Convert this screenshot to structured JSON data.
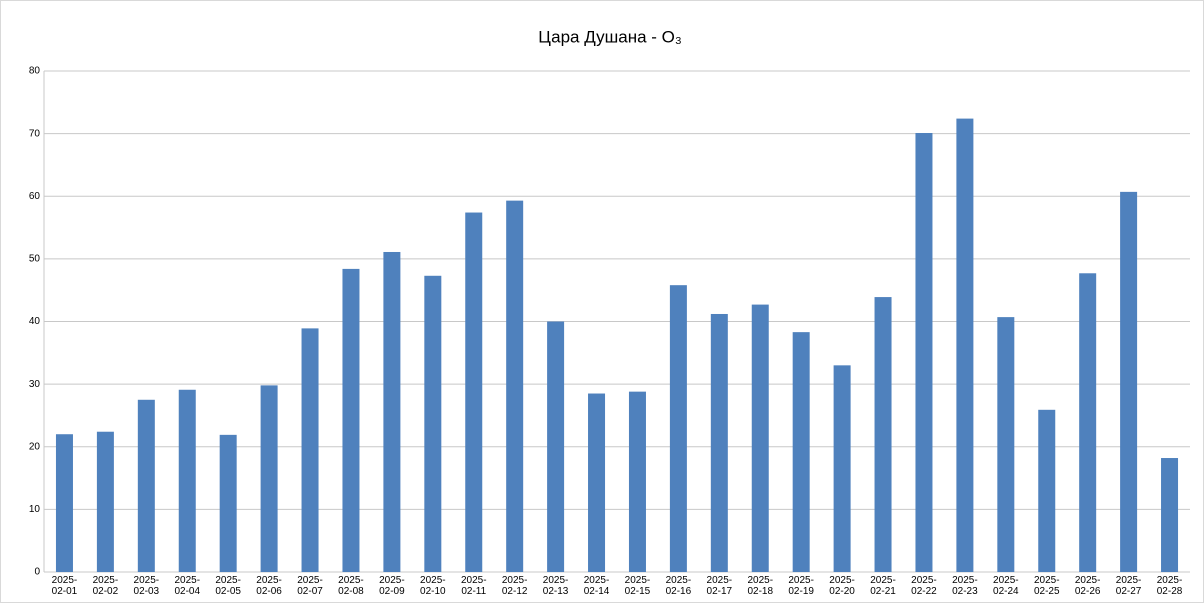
{
  "chart_data": {
    "type": "bar",
    "title": "Цара Душана - O₃",
    "categories": [
      "2025-02-01",
      "2025-02-02",
      "2025-02-03",
      "2025-02-04",
      "2025-02-05",
      "2025-02-06",
      "2025-02-07",
      "2025-02-08",
      "2025-02-09",
      "2025-02-10",
      "2025-02-11",
      "2025-02-12",
      "2025-02-13",
      "2025-02-14",
      "2025-02-15",
      "2025-02-16",
      "2025-02-17",
      "2025-02-18",
      "2025-02-19",
      "2025-02-20",
      "2025-02-21",
      "2025-02-22",
      "2025-02-23",
      "2025-02-24",
      "2025-02-25",
      "2025-02-26",
      "2025-02-27",
      "2025-02-28"
    ],
    "values": [
      22,
      22.4,
      27.5,
      29.1,
      21.9,
      29.8,
      38.9,
      48.4,
      51.1,
      47.3,
      57.4,
      59.3,
      40,
      28.5,
      28.8,
      45.8,
      41.2,
      42.7,
      38.3,
      33,
      43.9,
      70.1,
      72.4,
      40.7,
      25.9,
      47.7,
      60.7,
      18.2
    ],
    "color": "#4f81bd",
    "ylim": [
      0,
      80
    ],
    "yticks": [
      0,
      10,
      20,
      30,
      40,
      50,
      60,
      70,
      80
    ],
    "grid": true
  }
}
